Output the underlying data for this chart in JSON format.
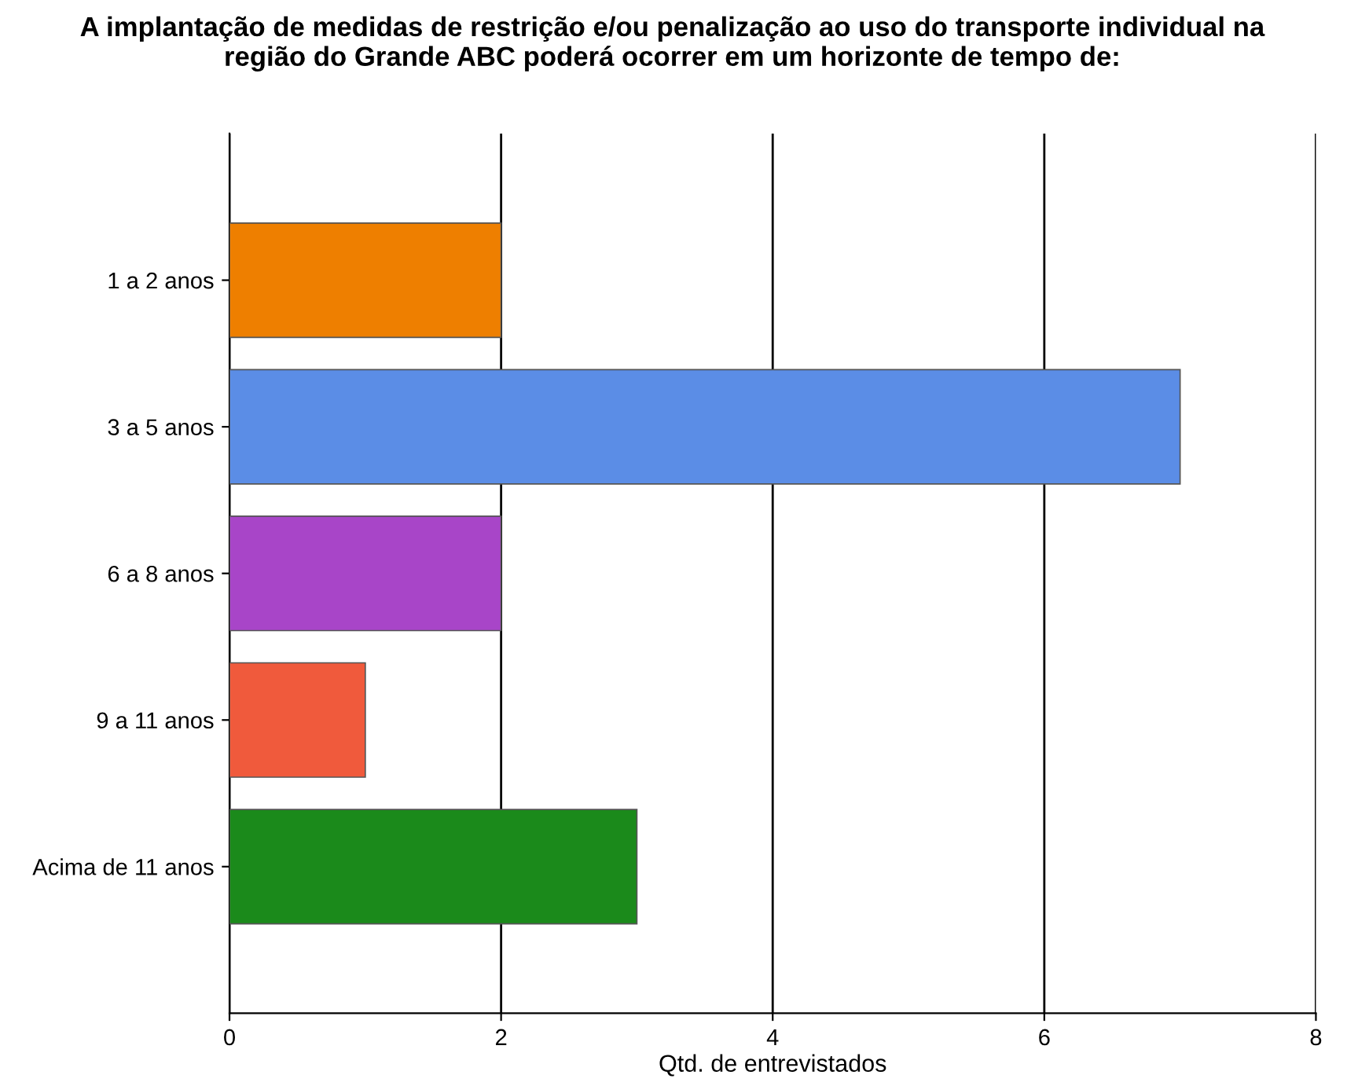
{
  "chart_data": {
    "type": "bar",
    "orientation": "horizontal",
    "title": "A implantação de medidas de restrição e/ou penalização ao uso do transporte individual na\nregião do Grande ABC poderá ocorrer em um horizonte de tempo de:",
    "xlabel": "Qtd. de entrevistados",
    "categories": [
      "1 a 2 anos",
      "3 a 5 anos",
      "6 a 8 anos",
      "9 a 11 anos",
      "Acima de 11 anos"
    ],
    "values": [
      2,
      7,
      2,
      1,
      3
    ],
    "colors": [
      "#ee7f00",
      "#5b8de6",
      "#a845c8",
      "#f05a3c",
      "#1b8a1b"
    ],
    "xlim": [
      0,
      8
    ],
    "xticks": [
      0,
      2,
      4,
      6,
      8
    ],
    "grid": "x"
  }
}
